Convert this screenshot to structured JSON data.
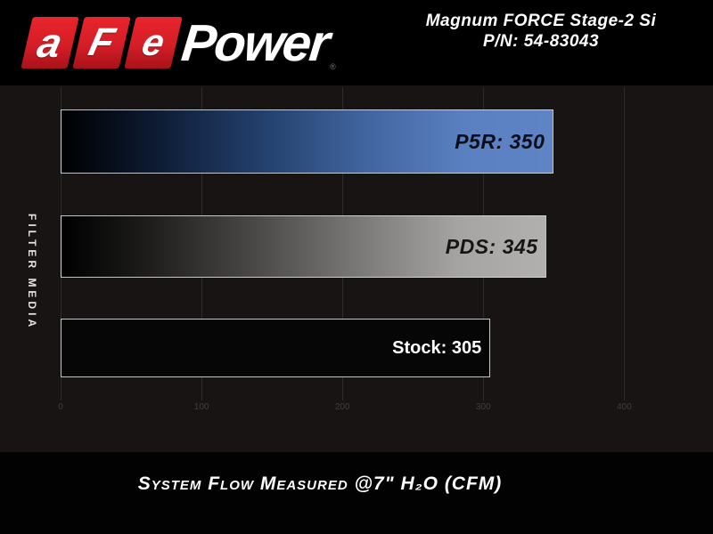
{
  "header": {
    "logo": {
      "letter_a": "a",
      "letter_f": "F",
      "letter_e": "e",
      "word_power": "Power",
      "registered_mark": "®"
    },
    "product": {
      "line1": "Magnum FORCE Stage-2 Si",
      "line2": "P/N: 54-83043"
    }
  },
  "chart": {
    "y_axis_label": "FILTER MEDIA",
    "caption": "System Flow Measured @7\" H₂O (CFM)",
    "tick_labels": [
      "0",
      "100",
      "200",
      "300",
      "400"
    ],
    "bar_labels": [
      "P5R: 350",
      "PDS: 345",
      "Stock: 305"
    ]
  },
  "chart_data": {
    "type": "bar",
    "orientation": "horizontal",
    "categories": [
      "P5R",
      "PDS",
      "Stock"
    ],
    "values": [
      350,
      345,
      305
    ],
    "bar_labels": [
      "P5R: 350",
      "PDS: 345",
      "Stock: 305"
    ],
    "title": "Magnum FORCE Stage-2 Si P/N: 54-83043",
    "xlabel": "System Flow Measured @7\" H₂O (CFM)",
    "ylabel": "FILTER MEDIA",
    "xlim": [
      0,
      456
    ],
    "xticks": [
      0,
      100,
      200,
      300,
      400
    ],
    "grid": true,
    "legend": false,
    "bar_styles": [
      {
        "name": "P5R",
        "fill": "gradient black to blue",
        "end_color": "#5b80c1",
        "label_color": "#0a0e18"
      },
      {
        "name": "PDS",
        "fill": "gradient black to silver",
        "end_color": "#b1b0ae",
        "label_color": "#161616"
      },
      {
        "name": "Stock",
        "fill": "solid black",
        "end_color": "#060606",
        "label_color": "#ffffff"
      }
    ]
  },
  "colors": {
    "brand_red": "#d41e26",
    "page_background": "#000000",
    "chart_background": "#171413",
    "gridline": "#2e2c2a",
    "tick_text": "#413e3c",
    "text_white": "#ffffff"
  }
}
